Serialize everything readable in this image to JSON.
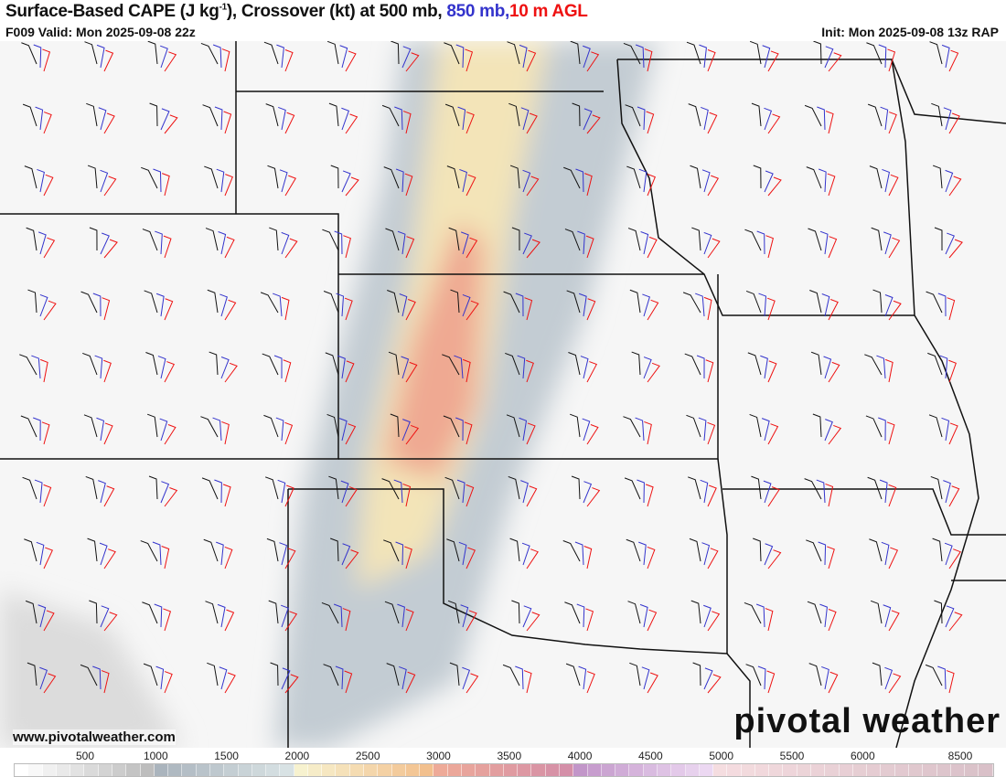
{
  "header": {
    "title_main": "Surface-Based CAPE (J kg",
    "title_sup": "-1",
    "title_rest": "), Crossover (kt) at 500 mb, ",
    "title_850": "850 mb,",
    "title_10m": "10 m AGL",
    "valid": "F009 Valid: Mon 2025-09-08 22z",
    "init": "Init: Mon 2025-09-08 13z RAP"
  },
  "footer": {
    "url": "www.pivotalweather.com",
    "logo": "pivotal weather"
  },
  "colorbar": {
    "labels": [
      "500",
      "1000",
      "1500",
      "2000",
      "2500",
      "3000",
      "3500",
      "4000",
      "4500",
      "5000",
      "5500",
      "6000",
      "8500"
    ],
    "stops": [
      [
        "#ffffff",
        "#bdbdbd"
      ],
      [
        "#aab4bd",
        "#d8e2e4"
      ],
      [
        "#f7f2cf",
        "#f2c08e"
      ],
      [
        "#eeaa98",
        "#d48fa8"
      ],
      [
        "#c296c9",
        "#ecd8f2"
      ],
      [
        "#f5dde0",
        "#d9c0c8"
      ]
    ]
  },
  "colors": {
    "cape_low": "#c8d2d8",
    "cape_mid": "#f4e6bc",
    "cape_high": "#efaa96",
    "wind_500": "#111111",
    "wind_850": "#3333cc",
    "wind_10m": "#ee1111"
  }
}
